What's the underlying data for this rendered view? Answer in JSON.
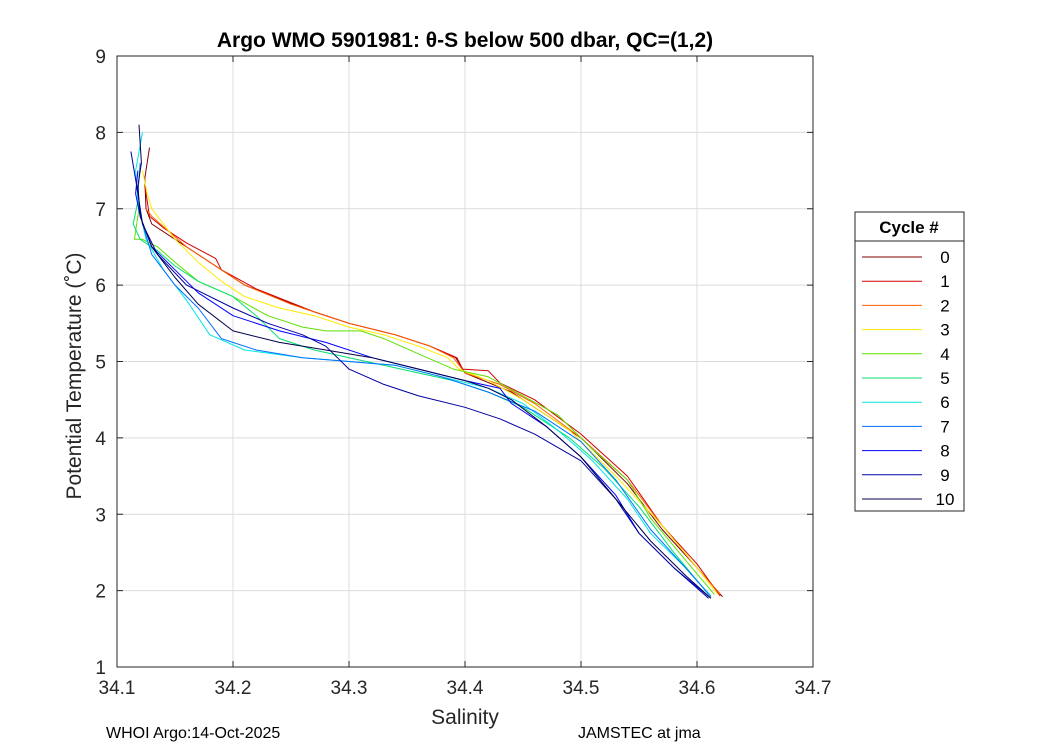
{
  "chart_data": {
    "type": "line",
    "title": "Argo WMO 5901981: θ-S below 500 dbar,  QC=(1,2)",
    "xlabel": "Salinity",
    "ylabel": "Potential Temperature (˚C)",
    "xlim": [
      34.1,
      34.7
    ],
    "ylim": [
      1,
      9
    ],
    "xticks": [
      "34.1",
      "34.2",
      "34.3",
      "34.4",
      "34.5",
      "34.6",
      "34.7"
    ],
    "yticks": [
      "1",
      "2",
      "3",
      "4",
      "5",
      "6",
      "7",
      "8",
      "9"
    ],
    "grid": true,
    "legend": {
      "title": "Cycle #",
      "location": "outside-right"
    },
    "series": [
      {
        "name": "0",
        "color": "#800000",
        "x": [
          34.128,
          34.124,
          34.125,
          34.13,
          34.15,
          34.18,
          34.21,
          34.26,
          34.3,
          34.34,
          34.37,
          34.392,
          34.4,
          34.44,
          34.47,
          34.5,
          34.54,
          34.57,
          34.6,
          34.622
        ],
        "y": [
          7.8,
          7.4,
          7.0,
          6.8,
          6.6,
          6.3,
          6.0,
          5.7,
          5.5,
          5.35,
          5.2,
          5.05,
          4.85,
          4.6,
          4.3,
          4.0,
          3.4,
          2.8,
          2.3,
          1.92
        ]
      },
      {
        "name": "1",
        "color": "#d00000",
        "x": [
          34.124,
          34.126,
          34.128,
          34.14,
          34.16,
          34.185,
          34.19,
          34.22,
          34.27,
          34.3,
          34.34,
          34.37,
          34.393,
          34.398,
          34.42,
          34.43,
          34.46,
          34.5,
          34.54,
          34.57,
          34.6,
          34.62
        ],
        "y": [
          7.3,
          7.1,
          6.9,
          6.75,
          6.55,
          6.35,
          6.2,
          5.95,
          5.65,
          5.5,
          5.35,
          5.2,
          5.05,
          4.9,
          4.88,
          4.72,
          4.5,
          4.05,
          3.5,
          2.85,
          2.35,
          1.93
        ]
      },
      {
        "name": "2",
        "color": "#ff6000",
        "x": [
          34.125,
          34.13,
          34.145,
          34.16,
          34.18,
          34.21,
          34.25,
          34.3,
          34.34,
          34.37,
          34.39,
          34.4,
          34.43,
          34.46,
          34.5,
          34.54,
          34.57,
          34.6,
          34.62
        ],
        "y": [
          7.0,
          6.9,
          6.7,
          6.5,
          6.3,
          6.0,
          5.75,
          5.5,
          5.35,
          5.2,
          5.05,
          4.85,
          4.7,
          4.45,
          4.0,
          3.45,
          2.85,
          2.3,
          1.95
        ]
      },
      {
        "name": "3",
        "color": "#ffea00",
        "x": [
          34.122,
          34.126,
          34.13,
          34.14,
          34.15,
          34.17,
          34.19,
          34.21,
          34.24,
          34.27,
          34.3,
          34.33,
          34.36,
          34.385,
          34.395,
          34.42,
          34.45,
          34.49,
          34.53,
          34.57,
          34.6,
          34.618
        ],
        "y": [
          7.5,
          7.2,
          7.0,
          6.8,
          6.6,
          6.3,
          6.05,
          5.85,
          5.7,
          5.6,
          5.45,
          5.35,
          5.2,
          5.05,
          4.9,
          4.75,
          4.5,
          4.1,
          3.5,
          2.85,
          2.3,
          1.95
        ]
      },
      {
        "name": "4",
        "color": "#60e000",
        "x": [
          34.119,
          34.115,
          34.122,
          34.135,
          34.15,
          34.17,
          34.2,
          34.23,
          34.26,
          34.28,
          34.31,
          34.33,
          34.36,
          34.39,
          34.42,
          34.45,
          34.48,
          34.51,
          34.54,
          34.56,
          34.59,
          34.615
        ],
        "y": [
          7.0,
          6.6,
          6.6,
          6.5,
          6.3,
          6.05,
          5.85,
          5.6,
          5.45,
          5.4,
          5.4,
          5.3,
          5.1,
          4.9,
          4.8,
          4.55,
          4.3,
          3.85,
          3.45,
          2.95,
          2.4,
          1.95
        ]
      },
      {
        "name": "5",
        "color": "#00e070",
        "x": [
          34.118,
          34.114,
          34.12,
          34.135,
          34.15,
          34.17,
          34.2,
          34.22,
          34.24,
          34.27,
          34.3,
          34.33,
          34.36,
          34.39,
          34.42,
          34.45,
          34.49,
          34.52,
          34.55,
          34.58,
          34.61
        ],
        "y": [
          7.1,
          6.8,
          6.6,
          6.45,
          6.25,
          6.05,
          5.85,
          5.6,
          5.3,
          5.15,
          5.05,
          4.95,
          4.85,
          4.75,
          4.6,
          4.4,
          4.0,
          3.6,
          3.1,
          2.5,
          1.95
        ]
      },
      {
        "name": "6",
        "color": "#00e6e6",
        "x": [
          34.122,
          34.116,
          34.118,
          34.125,
          34.14,
          34.16,
          34.18,
          34.21,
          34.26,
          34.3,
          34.34,
          34.38,
          34.42,
          34.45,
          34.48,
          34.51,
          34.54,
          34.56,
          34.59,
          34.612
        ],
        "y": [
          8.0,
          7.5,
          7.1,
          6.6,
          6.2,
          5.8,
          5.35,
          5.15,
          5.05,
          5.0,
          4.95,
          4.8,
          4.65,
          4.45,
          4.1,
          3.7,
          3.2,
          2.75,
          2.3,
          1.93
        ]
      },
      {
        "name": "7",
        "color": "#0070ff",
        "x": [
          34.12,
          34.118,
          34.122,
          34.13,
          34.15,
          34.17,
          34.19,
          34.22,
          34.26,
          34.3,
          34.34,
          34.38,
          34.42,
          34.46,
          34.5,
          34.53,
          34.56,
          34.59,
          34.612
        ],
        "y": [
          7.6,
          7.2,
          6.8,
          6.4,
          6.0,
          5.7,
          5.3,
          5.15,
          5.05,
          5.0,
          4.95,
          4.8,
          4.6,
          4.35,
          3.95,
          3.45,
          2.8,
          2.3,
          1.92
        ]
      },
      {
        "name": "8",
        "color": "#0000ff",
        "x": [
          34.118,
          34.116,
          34.12,
          34.13,
          34.15,
          34.17,
          34.2,
          34.24,
          34.28,
          34.32,
          34.36,
          34.4,
          34.43,
          34.44,
          34.47,
          34.5,
          34.53,
          34.55,
          34.58,
          34.612
        ],
        "y": [
          7.5,
          7.2,
          6.9,
          6.5,
          6.2,
          5.9,
          5.6,
          5.4,
          5.25,
          5.05,
          4.9,
          4.75,
          4.65,
          4.45,
          4.15,
          3.75,
          3.25,
          2.75,
          2.3,
          1.9
        ]
      },
      {
        "name": "9",
        "color": "#0000a0",
        "x": [
          34.112,
          34.117,
          34.122,
          34.135,
          34.16,
          34.2,
          34.23,
          34.26,
          34.28,
          34.3,
          34.33,
          34.36,
          34.4,
          34.43,
          34.46,
          34.5,
          34.53,
          34.55,
          34.58,
          34.61
        ],
        "y": [
          7.75,
          7.3,
          6.8,
          6.4,
          6.0,
          5.7,
          5.5,
          5.35,
          5.2,
          4.9,
          4.7,
          4.55,
          4.4,
          4.25,
          4.05,
          3.7,
          3.2,
          2.75,
          2.3,
          1.9
        ]
      },
      {
        "name": "10",
        "color": "#00004d",
        "x": [
          34.119,
          34.121,
          34.118,
          34.12,
          34.13,
          34.15,
          34.17,
          34.2,
          34.24,
          34.28,
          34.32,
          34.36,
          34.4,
          34.42,
          34.44,
          34.47,
          34.5,
          34.53,
          34.56,
          34.59,
          34.612
        ],
        "y": [
          8.1,
          7.6,
          7.3,
          6.9,
          6.5,
          6.1,
          5.75,
          5.4,
          5.25,
          5.15,
          5.05,
          4.9,
          4.75,
          4.65,
          4.5,
          4.15,
          3.75,
          3.2,
          2.65,
          2.2,
          1.9
        ]
      }
    ]
  },
  "footer": {
    "left": "WHOI Argo:14-Oct-2025",
    "right": "JAMSTEC at jma"
  }
}
